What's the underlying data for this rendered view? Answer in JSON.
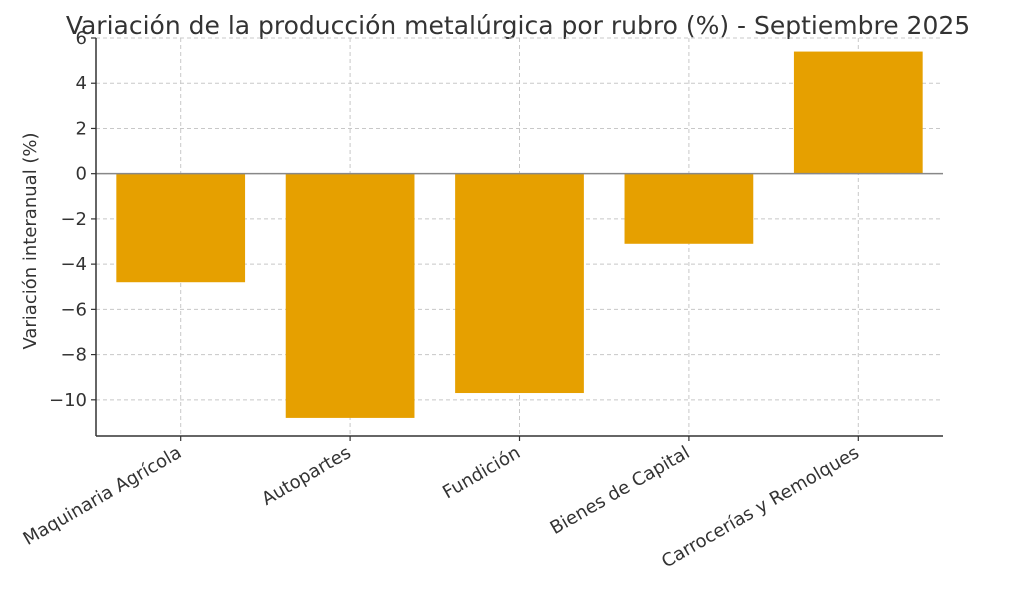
{
  "chart_data": {
    "type": "bar",
    "title": "Variación de la producción metalúrgica por rubro (%) - Septiembre 2025",
    "xlabel": "",
    "ylabel": "Variación interanual (%)",
    "categories": [
      "Maquinaria Agrícola",
      "Autopartes",
      "Fundición",
      "Bienes de Capital",
      "Carrocerías y Remolques"
    ],
    "values": [
      -4.8,
      -10.8,
      -9.7,
      -3.1,
      5.4
    ],
    "ylim": [
      -11.6,
      6.0
    ],
    "yticks": [
      6,
      4,
      2,
      0,
      -2,
      -4,
      -6,
      -8,
      -10
    ],
    "ytick_labels": [
      "6",
      "4",
      "2",
      "0",
      "−2",
      "−4",
      "−6",
      "−8",
      "−10"
    ],
    "grid": true,
    "bar_color": "#E6A000"
  }
}
